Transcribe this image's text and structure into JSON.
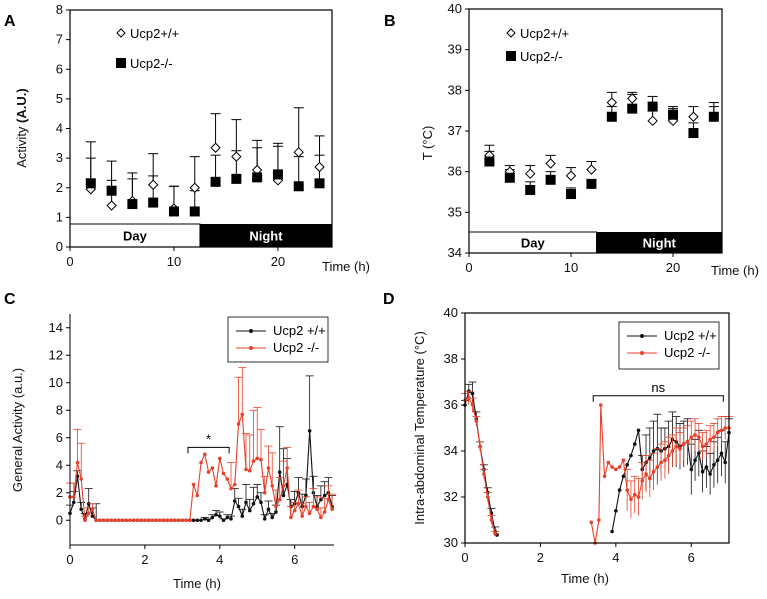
{
  "colors": {
    "wt": "#111111",
    "ko": "#e8402a",
    "axis": "#000000"
  },
  "chart_data": [
    {
      "panel": "A",
      "type": "scatter",
      "ylabel": "Activity",
      "ylabel_unit": "(A.U.)",
      "xlabel": "Time (h)",
      "xlim": [
        0,
        25.2
      ],
      "ylim": [
        0,
        8
      ],
      "xticks": [
        0,
        10,
        20
      ],
      "yticks": [
        0,
        1,
        2,
        3,
        4,
        5,
        6,
        7,
        8
      ],
      "phase_bar": {
        "day_label": "Day",
        "night_label": "Night",
        "switch": 12.5
      },
      "legend": [
        "Ucp2+/+",
        "Ucp2-/-"
      ],
      "x": [
        2,
        4,
        6,
        8,
        10,
        12,
        14,
        16,
        18,
        20,
        22,
        24
      ],
      "series": [
        {
          "name": "Ucp2+/+",
          "marker": "diamond-open",
          "values": [
            1.95,
            1.4,
            1.55,
            2.1,
            1.3,
            2.0,
            3.35,
            3.05,
            2.6,
            2.25,
            3.2,
            2.7
          ],
          "err_top": [
            3.0,
            2.25,
            2.3,
            2.4,
            2.05,
            3.05,
            4.5,
            4.3,
            3.35,
            3.5,
            4.7,
            3.75
          ]
        },
        {
          "name": "Ucp2-/-",
          "marker": "square-filled",
          "values": [
            2.15,
            1.9,
            1.45,
            1.5,
            1.2,
            1.2,
            2.2,
            2.3,
            2.35,
            2.45,
            2.05,
            2.15
          ],
          "err_top": [
            3.55,
            2.9,
            2.5,
            3.15,
            2.05,
            1.9,
            3.1,
            3.25,
            3.6,
            3.4,
            3.05,
            3.1
          ]
        }
      ]
    },
    {
      "panel": "B",
      "type": "scatter",
      "ylabel": "T  (°C)",
      "xlabel": "Time (h)",
      "xlim": [
        0,
        24.8
      ],
      "ylim": [
        34,
        40
      ],
      "xticks": [
        0,
        10,
        20
      ],
      "yticks": [
        34,
        35,
        36,
        37,
        38,
        39,
        40
      ],
      "phase_bar": {
        "day_label": "Day",
        "night_label": "Night",
        "switch": 12.5
      },
      "legend": [
        "Ucp2+/+",
        "Ucp2-/-"
      ],
      "x": [
        2,
        4,
        6,
        8,
        10,
        12,
        14,
        16,
        18,
        20,
        22,
        24
      ],
      "series": [
        {
          "name": "Ucp2+/+",
          "marker": "diamond-open",
          "values": [
            36.4,
            36.0,
            35.95,
            36.2,
            35.9,
            36.05,
            37.7,
            37.8,
            37.25,
            37.25,
            37.35,
            37.35
          ],
          "err_top": [
            36.65,
            36.15,
            36.15,
            36.4,
            36.1,
            36.25,
            37.95,
            37.95,
            37.5,
            37.55,
            37.6,
            37.7
          ]
        },
        {
          "name": "Ucp2-/-",
          "marker": "square-filled",
          "values": [
            36.25,
            35.85,
            35.55,
            35.8,
            35.45,
            35.7,
            37.35,
            37.55,
            37.6,
            37.4,
            36.95,
            37.35
          ],
          "err_top": [
            36.5,
            36.05,
            35.75,
            36.0,
            35.6,
            35.8,
            37.6,
            37.9,
            37.85,
            37.6,
            37.2,
            37.6
          ]
        }
      ]
    },
    {
      "panel": "C",
      "type": "line",
      "ylabel": "General Activity (a.u.)",
      "xlabel": "Time (h)",
      "xlim": [
        0,
        7.05
      ],
      "ylim": [
        -1.8,
        15
      ],
      "xticks": [
        0,
        2,
        4,
        6
      ],
      "yticks": [
        0,
        2,
        4,
        6,
        8,
        10,
        12,
        14
      ],
      "legend": [
        "Ucp2 +/+",
        "Ucp2 -/-"
      ],
      "annotation": {
        "label": "*",
        "from": 3.15,
        "to": 4.25,
        "y": 5.3
      },
      "x": [
        0,
        0.1,
        0.2,
        0.3,
        0.4,
        0.5,
        0.6,
        0.7,
        0.8,
        0.9,
        1.0,
        1.1,
        1.2,
        1.3,
        1.4,
        1.5,
        1.6,
        1.7,
        1.8,
        1.9,
        2.0,
        2.1,
        2.2,
        2.3,
        2.4,
        2.5,
        2.6,
        2.7,
        2.8,
        2.9,
        3.0,
        3.1,
        3.2,
        3.3,
        3.4,
        3.5,
        3.6,
        3.7,
        3.8,
        3.9,
        4.0,
        4.1,
        4.2,
        4.3,
        4.4,
        4.5,
        4.6,
        4.7,
        4.8,
        4.9,
        5.0,
        5.1,
        5.2,
        5.3,
        5.4,
        5.5,
        5.6,
        5.7,
        5.8,
        5.9,
        6.0,
        6.1,
        6.2,
        6.3,
        6.4,
        6.5,
        6.6,
        6.7,
        6.8,
        6.9,
        7.0
      ],
      "series": [
        {
          "name": "Ucp2 +/+",
          "values": [
            0.5,
            1.3,
            3.2,
            0.8,
            0.1,
            1.2,
            0.3,
            0,
            0,
            0,
            0,
            0,
            0,
            0,
            0,
            0,
            0,
            0,
            0,
            0,
            0,
            0,
            0,
            0,
            0,
            0,
            0,
            0,
            0,
            0,
            0,
            0,
            0,
            0,
            0,
            0,
            0.1,
            0,
            0.2,
            0.4,
            0.3,
            0,
            0.2,
            0.1,
            1.4,
            1.0,
            0.3,
            1.3,
            0.7,
            1.2,
            1.7,
            1.3,
            0.1,
            0.8,
            0.2,
            0.6,
            3.5,
            1.8,
            2.6,
            1.0,
            1.2,
            2.0,
            1.0,
            1.8,
            6.5,
            2.0,
            1.0,
            1.5,
            1.8,
            2.0,
            1.0
          ],
          "err": [
            0.6,
            0.8,
            0.4,
            0.5,
            0.4,
            1.1,
            0.6,
            1.2,
            0,
            0,
            0,
            0,
            0,
            0,
            0,
            0,
            0,
            0,
            0,
            0,
            0,
            0,
            0,
            0,
            0,
            0,
            0,
            0,
            0,
            0,
            0,
            0,
            0,
            0,
            0,
            0,
            0.1,
            0.1,
            0.2,
            0.3,
            0.3,
            0.1,
            0.2,
            0.2,
            0.9,
            0.6,
            0.5,
            1.3,
            0.8,
            1.2,
            0.9,
            0.7,
            0.3,
            0.6,
            0.3,
            0.5,
            3.3,
            3.4,
            1.9,
            0.5,
            0.9,
            1.1,
            0.9,
            1.2,
            4.0,
            1.2,
            0.8,
            1.0,
            1.0,
            1.1,
            0.8
          ]
        },
        {
          "name": "Ucp2 -/-",
          "values": [
            1.7,
            1.7,
            4.2,
            3.0,
            0,
            0.5,
            0.8,
            0,
            0,
            0,
            0,
            0,
            0,
            0,
            0,
            0,
            0,
            0,
            0,
            0,
            0,
            0,
            0,
            0,
            0,
            0,
            0,
            0,
            0,
            0,
            0,
            0,
            0,
            2.6,
            1.8,
            4.2,
            4.8,
            3.5,
            3.8,
            2.5,
            4.5,
            3.4,
            3.0,
            2.3,
            2.6,
            7.0,
            7.7,
            3.7,
            3.6,
            4.3,
            4.5,
            4.4,
            2.0,
            3.8,
            2.5,
            1.0,
            1.5,
            2.5,
            3.8,
            0.2,
            0.7,
            1.2,
            0.3,
            1.0,
            0.5,
            1.0,
            0.8,
            0.2,
            0.6,
            1.5,
            0.8
          ],
          "err": [
            1.0,
            1.0,
            2.4,
            2.6,
            0.3,
            0.4,
            0.4,
            0,
            0,
            0,
            0,
            0,
            0,
            0,
            0,
            0,
            0,
            0,
            0,
            0,
            0,
            0,
            0,
            0,
            0,
            0,
            0,
            0,
            0,
            0,
            0,
            0,
            0,
            0,
            0,
            0,
            0,
            0,
            0,
            0,
            0,
            0,
            0,
            1.9,
            0,
            3.4,
            3.4,
            2.6,
            2.6,
            3.7,
            3.7,
            2.2,
            1.2,
            1.6,
            2.4,
            1.2,
            1.6,
            1.8,
            1.5,
            0.8,
            0.6,
            1.0,
            0.9,
            0.7,
            0.8,
            1.3,
            0.9,
            0.7,
            1.0,
            1.0,
            1.1
          ]
        }
      ]
    },
    {
      "panel": "D",
      "type": "line",
      "ylabel": "Intra-abdominal Temperature (°C)",
      "xlabel": "Time (h)",
      "xlim": [
        0,
        7
      ],
      "ylim": [
        30,
        40
      ],
      "xticks": [
        0,
        2,
        4,
        6
      ],
      "yticks": [
        30,
        32,
        34,
        36,
        38,
        40
      ],
      "legend": [
        "Ucp2 +/+",
        "Ucp2 -/-"
      ],
      "annotation": {
        "label": "ns",
        "from": 3.4,
        "to": 6.85,
        "y": 36.4
      },
      "series": [
        {
          "name": "Ucp2 +/+",
          "x": [
            0,
            0.1,
            0.2,
            0.3,
            0.4,
            0.5,
            0.6,
            0.7,
            0.8,
            0.85,
            3.9,
            4.0,
            4.1,
            4.2,
            4.3,
            4.4,
            4.5,
            4.6,
            4.7,
            4.8,
            4.9,
            5.0,
            5.1,
            5.2,
            5.3,
            5.4,
            5.5,
            5.6,
            5.7,
            5.8,
            5.9,
            6.0,
            6.1,
            6.2,
            6.3,
            6.4,
            6.5,
            6.6,
            6.7,
            6.8,
            6.9,
            7.0
          ],
          "values": [
            36.0,
            36.6,
            36.5,
            35.4,
            34.2,
            33.2,
            32.2,
            31.3,
            30.5,
            30.35,
            30.5,
            31.4,
            32.3,
            32.9,
            33.4,
            33.8,
            34.3,
            34.9,
            33.2,
            33.5,
            33.7,
            34.0,
            34.1,
            34.0,
            34.1,
            34.2,
            34.5,
            34.4,
            34.2,
            34.3,
            34.4,
            33.2,
            33.6,
            33.9,
            33.1,
            33.3,
            33.0,
            33.4,
            33.6,
            33.9,
            33.5,
            34.8
          ],
          "err": [
            0.2,
            0.3,
            0.5,
            0.3,
            0.2,
            0.2,
            0.2,
            0.2,
            0.2,
            0,
            0,
            0,
            0,
            0,
            0,
            0,
            0,
            0,
            0.6,
            1.2,
            1.3,
            1.3,
            1.5,
            1.0,
            0.9,
            1.1,
            1.2,
            1.1,
            1.0,
            1.0,
            1.0,
            1.1,
            0.9,
            1.0,
            0.9,
            0.9,
            0.9,
            1.0,
            1.0,
            1.0,
            0.9,
            0.6
          ]
        },
        {
          "name": "Ucp2 -/-",
          "x": [
            0,
            0.1,
            0.2,
            0.3,
            0.4,
            0.5,
            0.6,
            0.7,
            0.8,
            3.35,
            3.45,
            3.55,
            3.6,
            3.7,
            3.8,
            3.9,
            4.0,
            4.1,
            4.2,
            4.3,
            4.4,
            4.5,
            4.6,
            4.7,
            4.8,
            4.9,
            5.0,
            5.1,
            5.2,
            5.3,
            5.4,
            5.5,
            5.6,
            5.7,
            5.8,
            5.9,
            6.0,
            6.1,
            6.2,
            6.3,
            6.4,
            6.5,
            6.6,
            6.7,
            6.8,
            6.9,
            7.0
          ],
          "values": [
            36.2,
            36.3,
            36.0,
            35.3,
            34.2,
            33.0,
            32.0,
            31.0,
            30.4,
            30.9,
            30.0,
            31.0,
            36.0,
            32.9,
            33.5,
            33.3,
            33.2,
            33.3,
            33.6,
            32.3,
            31.9,
            32.1,
            32.0,
            32.7,
            33.0,
            32.8,
            33.1,
            33.3,
            33.5,
            33.6,
            33.8,
            34.0,
            34.2,
            34.1,
            34.3,
            34.4,
            34.6,
            34.7,
            34.6,
            34.2,
            34.3,
            34.5,
            34.6,
            34.8,
            34.9,
            35.0,
            35.0
          ],
          "err": [
            0.3,
            0.3,
            0.3,
            0.2,
            0.2,
            0.2,
            0.2,
            0.2,
            0.1,
            0,
            0,
            0,
            0,
            0,
            0,
            0,
            0,
            0,
            0,
            0.9,
            0.8,
            0.8,
            0.8,
            0.8,
            0.8,
            0.8,
            0.8,
            0.8,
            0.8,
            0.8,
            0.8,
            0.7,
            0.8,
            0.7,
            0.7,
            0.7,
            0.7,
            0.7,
            0.6,
            0.6,
            0.6,
            0.6,
            0.6,
            0.6,
            0.6,
            0.5,
            0.5
          ]
        }
      ]
    }
  ]
}
